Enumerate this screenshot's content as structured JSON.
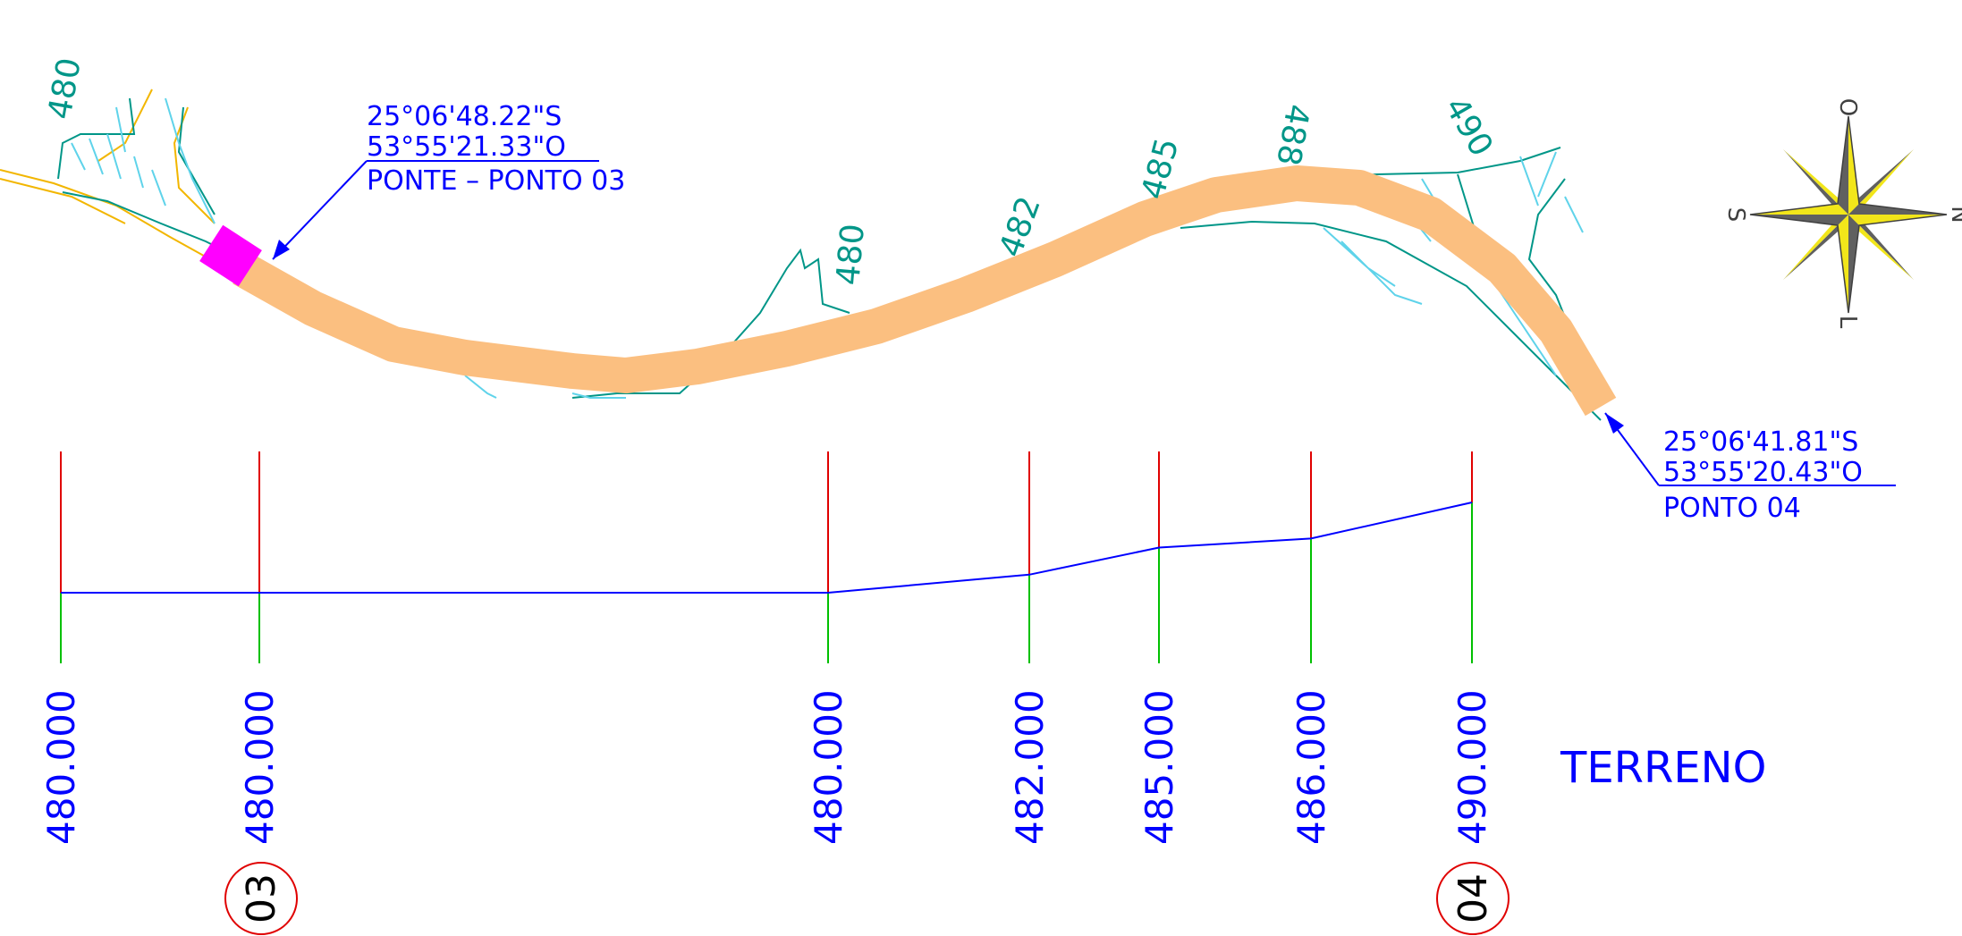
{
  "plan": {
    "start_coords": {
      "lat": "25°06'48.22\"S",
      "lon": "53°55'21.33\"O",
      "label": "PONTE – PONTO 03"
    },
    "end_coords": {
      "lat": "25°06'41.81\"S",
      "lon": "53°55'20.43\"O",
      "label": "PONTO 04"
    },
    "contour_labels": [
      "480",
      "480",
      "482",
      "485",
      "488",
      "490"
    ]
  },
  "compass": {
    "north": "N",
    "south": "S",
    "east": "L",
    "west": "O"
  },
  "profile": {
    "title": "TERRENO",
    "stations": [
      {
        "elevation": "480.000",
        "value": 480.0
      },
      {
        "elevation": "480.000",
        "value": 480.0
      },
      {
        "elevation": "480.000",
        "value": 480.0
      },
      {
        "elevation": "482.000",
        "value": 482.0
      },
      {
        "elevation": "485.000",
        "value": 485.0
      },
      {
        "elevation": "486.000",
        "value": 486.0
      },
      {
        "elevation": "490.000",
        "value": 490.0
      }
    ],
    "point_markers": [
      "03",
      "04"
    ]
  },
  "colors": {
    "road": "#fbbf80",
    "bridge": "#ff00ff",
    "text": "#0000ff",
    "contour": "#009688",
    "stream": "#5fd3ea",
    "upper_tick": "#e00000",
    "lower_tick": "#00c000",
    "profile_line": "#0000ff"
  }
}
